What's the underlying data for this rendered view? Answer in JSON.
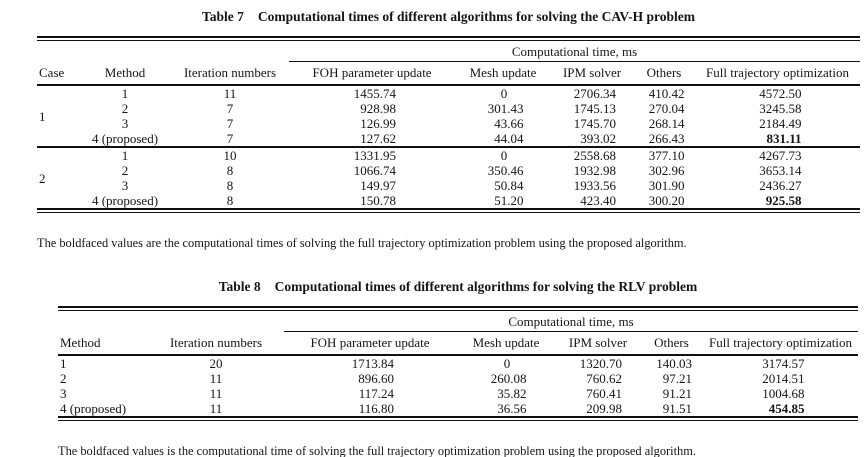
{
  "page": {
    "background": "#ffffff",
    "text_color": "#151515",
    "rule_color": "#101010"
  },
  "table7": {
    "title_label": "Table 7",
    "title_text": "Computational times of different algorithms for solving the CAV-H problem",
    "span_header": "Computational time, ms",
    "columns": [
      "Case",
      "Method",
      "Iteration numbers",
      "FOH parameter update",
      "Mesh update",
      "IPM solver",
      "Others",
      "Full trajectory optimization"
    ],
    "groups": [
      {
        "case": "1",
        "rows": [
          {
            "method": "1",
            "iterations": "11",
            "foh": "1455.74",
            "mesh": "0",
            "ipm": "2706.34",
            "others": "410.42",
            "full": "4572.50",
            "bold": false
          },
          {
            "method": "2",
            "iterations": "7",
            "foh": "928.98",
            "mesh": "301.43",
            "ipm": "1745.13",
            "others": "270.04",
            "full": "3245.58",
            "bold": false
          },
          {
            "method": "3",
            "iterations": "7",
            "foh": "126.99",
            "mesh": "43.66",
            "ipm": "1745.70",
            "others": "268.14",
            "full": "2184.49",
            "bold": false
          },
          {
            "method": "4 (proposed)",
            "iterations": "7",
            "foh": "127.62",
            "mesh": "44.04",
            "ipm": "393.02",
            "others": "266.43",
            "full": "831.11",
            "bold": true
          }
        ]
      },
      {
        "case": "2",
        "rows": [
          {
            "method": "1",
            "iterations": "10",
            "foh": "1331.95",
            "mesh": "0",
            "ipm": "2558.68",
            "others": "377.10",
            "full": "4267.73",
            "bold": false
          },
          {
            "method": "2",
            "iterations": "8",
            "foh": "1066.74",
            "mesh": "350.46",
            "ipm": "1932.98",
            "others": "302.96",
            "full": "3653.14",
            "bold": false
          },
          {
            "method": "3",
            "iterations": "8",
            "foh": "149.97",
            "mesh": "50.84",
            "ipm": "1933.56",
            "others": "301.90",
            "full": "2436.27",
            "bold": false
          },
          {
            "method": "4 (proposed)",
            "iterations": "8",
            "foh": "150.78",
            "mesh": "51.20",
            "ipm": "423.40",
            "others": "300.20",
            "full": "925.58",
            "bold": true
          }
        ]
      }
    ],
    "footnote": "The boldfaced values are the computational times of solving the full trajectory optimization problem using the proposed algorithm."
  },
  "table8": {
    "title_label": "Table 8",
    "title_text": "Computational times of different algorithms for solving the RLV problem",
    "span_header": "Computational time, ms",
    "columns": [
      "Method",
      "Iteration numbers",
      "FOH parameter update",
      "Mesh update",
      "IPM solver",
      "Others",
      "Full trajectory optimization"
    ],
    "rows": [
      {
        "method": "1",
        "iterations": "20",
        "foh": "1713.84",
        "mesh": "0",
        "ipm": "1320.70",
        "others": "140.03",
        "full": "3174.57",
        "bold": false
      },
      {
        "method": "2",
        "iterations": "11",
        "foh": "896.60",
        "mesh": "260.08",
        "ipm": "760.62",
        "others": "97.21",
        "full": "2014.51",
        "bold": false
      },
      {
        "method": "3",
        "iterations": "11",
        "foh": "117.24",
        "mesh": "35.82",
        "ipm": "760.41",
        "others": "91.21",
        "full": "1004.68",
        "bold": false
      },
      {
        "method": "4 (proposed)",
        "iterations": "11",
        "foh": "116.80",
        "mesh": "36.56",
        "ipm": "209.98",
        "others": "91.51",
        "full": "454.85",
        "bold": true
      }
    ],
    "footnote": "The boldfaced values is the computational time of solving the full trajectory optimization problem using the proposed algorithm."
  }
}
